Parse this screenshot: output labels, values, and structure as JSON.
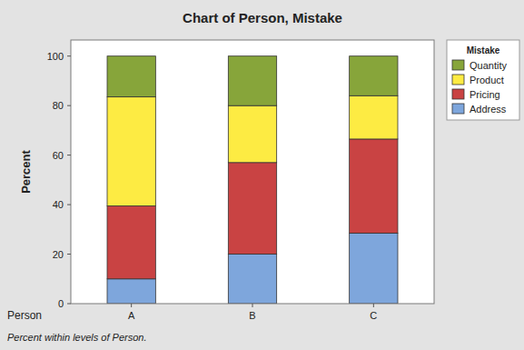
{
  "chart_data": {
    "type": "bar",
    "title": "Chart of Person, Mistake",
    "x_label": "Person",
    "y_label": "Percent",
    "footnote": "Percent within levels of Person.",
    "legend_title": "Mistake",
    "categories": [
      "A",
      "B",
      "C"
    ],
    "series": [
      {
        "name": "Address",
        "color": "#7ea6dc",
        "values": [
          10,
          20,
          28.5
        ]
      },
      {
        "name": "Pricing",
        "color": "#c94343",
        "values": [
          29.5,
          37,
          38
        ]
      },
      {
        "name": "Product",
        "color": "#fdeb43",
        "values": [
          44,
          23,
          17.5
        ]
      },
      {
        "name": "Quantity",
        "color": "#87a53a",
        "values": [
          16.5,
          20,
          16
        ]
      }
    ],
    "ylim": [
      0,
      106.5
    ],
    "yticks": [
      0,
      20,
      40,
      60,
      80,
      100
    ],
    "stacked": true,
    "grid": false,
    "legend": "right"
  }
}
